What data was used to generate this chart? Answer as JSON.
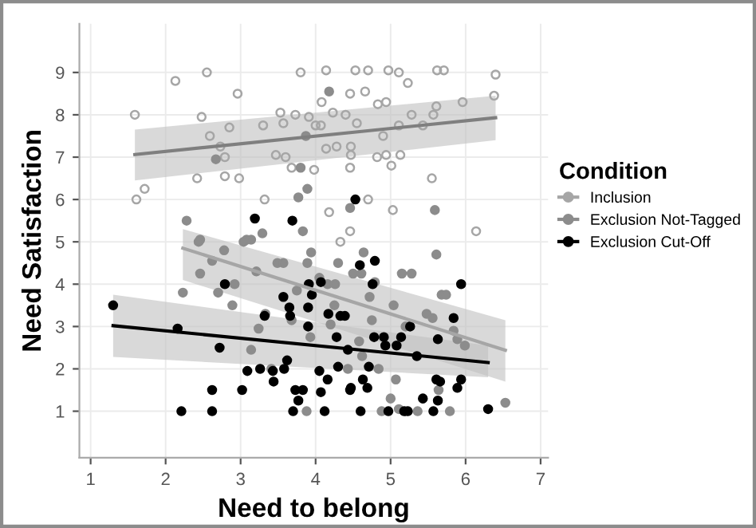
{
  "chart_data": {
    "type": "scatter",
    "xlabel": "Need to belong",
    "ylabel": "Need Satisfaction",
    "legend_title": "Condition",
    "legend": "right",
    "grid": true,
    "marker": "circle",
    "xlim": [
      0.85,
      7.1
    ],
    "ylim": [
      -0.1,
      10.15
    ],
    "xticks": [
      1,
      2,
      3,
      4,
      5,
      6,
      7
    ],
    "yticks": [
      1,
      2,
      3,
      4,
      5,
      6,
      7,
      8,
      9
    ],
    "series": [
      {
        "name": "Inclusion",
        "marker": "circle_open",
        "color": "#a6a6a6",
        "x": [
          1.59,
          1.61,
          1.72,
          2.13,
          2.55,
          2.48,
          2.59,
          2.42,
          2.79,
          2.85,
          2.96,
          2.98,
          2.73,
          2.79,
          3.3,
          3.32,
          3.47,
          3.53,
          3.57,
          3.6,
          3.68,
          3.73,
          3.8,
          3.91,
          3.98,
          4.0,
          4.07,
          4.14,
          4.08,
          4.18,
          4.14,
          4.23,
          4.28,
          4.33,
          4.4,
          4.46,
          4.47,
          4.47,
          4.46,
          4.46,
          4.53,
          4.55,
          4.66,
          4.7,
          4.7,
          4.83,
          4.94,
          4.9,
          4.82,
          4.94,
          5.01,
          5.03,
          4.97,
          5.11,
          5.11,
          5.13,
          5.23,
          5.28,
          5.43,
          5.55,
          5.57,
          5.61,
          5.62,
          5.71,
          5.96,
          6.14,
          6.38,
          6.4
        ],
        "values": [
          8.0,
          6.0,
          6.25,
          8.8,
          9.0,
          7.95,
          7.5,
          6.5,
          6.55,
          7.7,
          8.5,
          6.5,
          7.25,
          7.0,
          7.75,
          6.0,
          7.05,
          8.05,
          7.8,
          7.0,
          6.75,
          8.0,
          9.0,
          7.95,
          6.7,
          7.75,
          7.75,
          9.05,
          8.3,
          5.7,
          7.2,
          8.05,
          7.25,
          5.0,
          8.0,
          8.5,
          7.25,
          7.05,
          6.75,
          5.25,
          9.05,
          7.8,
          8.55,
          6.0,
          9.05,
          8.25,
          8.3,
          7.5,
          7.0,
          7.05,
          6.8,
          5.75,
          9.05,
          9.0,
          7.75,
          7.05,
          8.75,
          8.0,
          7.75,
          6.5,
          8.0,
          8.2,
          9.05,
          9.05,
          8.3,
          5.25,
          8.45,
          8.95
        ]
      },
      {
        "name": "Exclusion Not-Tagged",
        "color": "#8c8c8c",
        "x": [
          2.67,
          4.18,
          3.87,
          3.8,
          3.89,
          3.77,
          4.46,
          5.59,
          2.28,
          2.46,
          3.29,
          3.83,
          3.08,
          2.44,
          2.23,
          2.46,
          2.62,
          2.78,
          2.7,
          2.89,
          2.92,
          3.04,
          3.14,
          3.21,
          3.14,
          3.24,
          3.33,
          3.49,
          3.57,
          3.41,
          3.68,
          3.75,
          3.89,
          3.94,
          3.93,
          3.88,
          4.05,
          4.16,
          4.26,
          4.3,
          4.25,
          4.2,
          4.43,
          4.5,
          4.61,
          4.64,
          4.72,
          4.75,
          4.62,
          4.79,
          4.84,
          4.88,
          5.04,
          5.15,
          5.28,
          5.0,
          5.07,
          5.11,
          5.36,
          5.48,
          5.56,
          5.68,
          5.74,
          5.61,
          5.79,
          5.84,
          5.89,
          5.99,
          6.53,
          5.64,
          5.2,
          4.58
        ],
        "values": [
          6.95,
          8.55,
          7.5,
          6.75,
          6.25,
          6.05,
          5.8,
          5.75,
          5.5,
          5.05,
          5.2,
          5.25,
          5.05,
          5.0,
          3.8,
          4.25,
          4.55,
          4.8,
          3.8,
          3.5,
          4.0,
          5.0,
          5.05,
          4.3,
          2.45,
          2.95,
          3.3,
          4.5,
          4.5,
          2.0,
          3.15,
          3.85,
          4.5,
          4.75,
          2.75,
          1.0,
          4.15,
          4.0,
          4.0,
          4.5,
          3.5,
          3.05,
          2.0,
          4.25,
          4.25,
          4.75,
          3.7,
          3.15,
          2.3,
          4.05,
          2.0,
          1.0,
          3.5,
          4.25,
          4.25,
          1.3,
          1.75,
          1.05,
          1.0,
          3.3,
          3.2,
          3.75,
          3.75,
          4.7,
          1.0,
          2.9,
          2.7,
          2.55,
          1.2,
          1.5,
          3.0,
          2.65
        ]
      },
      {
        "name": "Exclusion Cut-Off",
        "color": "#000000",
        "x": [
          3.19,
          3.69,
          4.53,
          1.3,
          2.16,
          2.21,
          2.62,
          2.72,
          2.62,
          2.79,
          3.02,
          3.09,
          3.26,
          3.32,
          3.43,
          3.44,
          3.58,
          3.57,
          3.65,
          3.66,
          3.62,
          3.7,
          3.73,
          3.77,
          3.83,
          3.9,
          3.9,
          3.91,
          3.95,
          4.07,
          4.05,
          4.07,
          4.12,
          4.16,
          4.17,
          4.28,
          4.3,
          4.33,
          4.39,
          4.43,
          4.46,
          4.47,
          4.59,
          4.63,
          4.6,
          4.69,
          4.71,
          4.78,
          4.79,
          4.76,
          4.93,
          4.97,
          4.91,
          5.08,
          5.14,
          5.18,
          5.23,
          5.26,
          5.43,
          5.61,
          5.63,
          5.57,
          5.63,
          5.66,
          5.84,
          5.89,
          5.94,
          5.94,
          6.3,
          5.35
        ],
        "values": [
          5.55,
          5.5,
          6.0,
          3.5,
          2.95,
          1.0,
          1.0,
          2.5,
          1.5,
          4.0,
          1.5,
          1.95,
          2.0,
          3.25,
          1.95,
          1.7,
          2.0,
          3.7,
          3.45,
          3.25,
          2.2,
          1.0,
          1.5,
          1.25,
          1.5,
          3.45,
          3.0,
          4.0,
          3.75,
          4.05,
          1.95,
          1.45,
          1.0,
          1.75,
          3.3,
          2.75,
          2.05,
          3.25,
          3.25,
          2.45,
          1.5,
          1.55,
          4.45,
          1.75,
          1.0,
          1.55,
          2.05,
          2.75,
          4.55,
          4.0,
          2.55,
          1.0,
          2.75,
          2.55,
          2.75,
          1.0,
          1.0,
          3.0,
          1.3,
          1.75,
          1.25,
          1.0,
          2.7,
          1.7,
          3.2,
          1.55,
          1.75,
          4.0,
          1.05,
          2.3
        ]
      },
      {
        "type": "line",
        "marker": "none",
        "color": "#7f7f7f",
        "x": [
          1.59,
          6.4
        ],
        "values": [
          7.06,
          7.93
        ],
        "lower": [
          6.45,
          7.4
        ],
        "upper": [
          7.65,
          8.45
        ]
      },
      {
        "type": "line",
        "marker": "none",
        "color": "#a6a6a6",
        "x": [
          2.23,
          6.53
        ],
        "values": [
          4.85,
          2.44
        ],
        "lower": [
          4.1,
          1.7
        ],
        "upper": [
          5.3,
          3.15
        ]
      },
      {
        "type": "line",
        "marker": "none",
        "color": "#000000",
        "x": [
          1.3,
          6.3
        ],
        "values": [
          3.02,
          2.15
        ],
        "lower": [
          2.28,
          1.8
        ],
        "upper": [
          3.75,
          2.55
        ]
      }
    ]
  }
}
